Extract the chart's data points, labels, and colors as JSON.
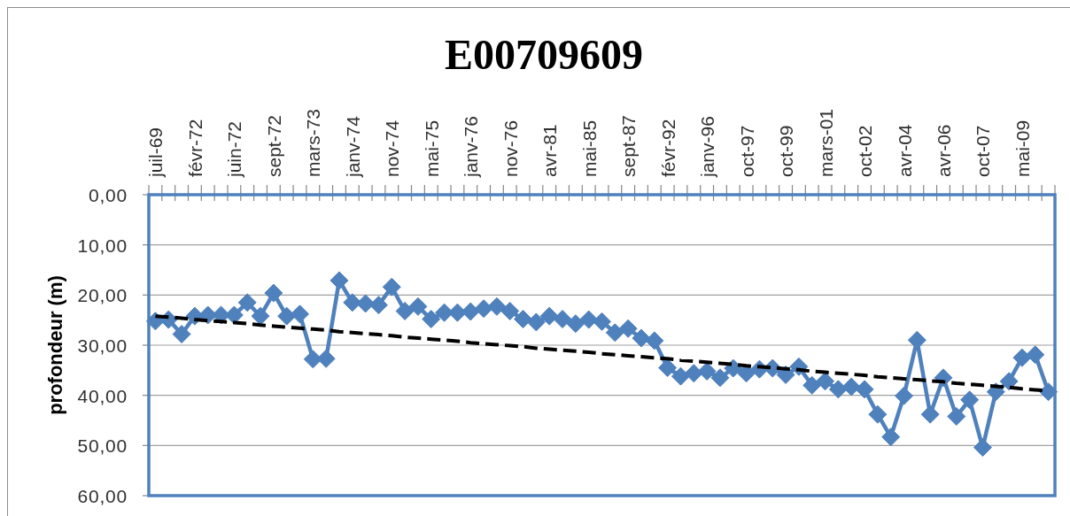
{
  "chart_data": {
    "type": "line",
    "title": "E00709609",
    "ylabel": "profondeur (m)",
    "categories": [
      "juil-69",
      null,
      null,
      "févr-72",
      null,
      null,
      "juin-72",
      null,
      null,
      "sept-72",
      null,
      null,
      "mars-73",
      null,
      null,
      "janv-74",
      null,
      null,
      "nov-74",
      null,
      null,
      "mai-75",
      null,
      null,
      "janv-76",
      null,
      null,
      "nov-76",
      null,
      null,
      "avr-81",
      null,
      null,
      "mai-85",
      null,
      null,
      "sept-87",
      null,
      null,
      "févr-92",
      null,
      null,
      "janv-96",
      null,
      null,
      "oct-97",
      null,
      null,
      "oct-99",
      null,
      null,
      "mars-01",
      null,
      null,
      "oct-02",
      null,
      null,
      "avr-04",
      null,
      null,
      "avr-06",
      null,
      null,
      "oct-07",
      null,
      null,
      "mai-09",
      null,
      null
    ],
    "series": [
      {
        "color": "#4f81bd",
        "marker": "diamond",
        "values": [
          25.2,
          24.9,
          27.8,
          24.2,
          24.0,
          24.0,
          24.0,
          21.5,
          24.2,
          19.6,
          24.2,
          23.8,
          32.8,
          32.7,
          17.1,
          21.5,
          21.7,
          22.0,
          18.4,
          23.2,
          22.3,
          24.8,
          23.5,
          23.5,
          23.3,
          22.7,
          22.3,
          23.2,
          24.8,
          25.4,
          24.2,
          24.8,
          25.7,
          24.9,
          25.3,
          27.5,
          26.7,
          28.6,
          29.1,
          34.5,
          36.2,
          35.6,
          35.2,
          36.5,
          34.6,
          35.6,
          34.8,
          34.6,
          35.9,
          34.3,
          38.0,
          37.2,
          38.8,
          38.3,
          38.8,
          43.8,
          48.3,
          40.1,
          29.0,
          43.8,
          36.5,
          44.2,
          40.9,
          50.4,
          39.3,
          37.2,
          32.5,
          31.9,
          39.3
        ]
      },
      {
        "color": "#000000",
        "marker": "none",
        "line_style": "dashed",
        "values": [
          24.2,
          24.4,
          24.6,
          24.9,
          25.1,
          25.3,
          25.5,
          25.7,
          26.0,
          26.2,
          26.4,
          26.6,
          26.8,
          27.0,
          27.3,
          27.5,
          27.7,
          27.9,
          28.1,
          28.4,
          28.6,
          28.8,
          29.0,
          29.2,
          29.5,
          29.7,
          29.9,
          30.1,
          30.3,
          30.6,
          30.8,
          31.0,
          31.2,
          31.4,
          31.7,
          31.9,
          32.1,
          32.3,
          32.5,
          32.7,
          33.0,
          33.2,
          33.4,
          33.6,
          33.8,
          34.1,
          34.3,
          34.5,
          34.7,
          34.9,
          35.2,
          35.4,
          35.6,
          35.8,
          36.0,
          36.3,
          36.5,
          36.7,
          36.9,
          37.1,
          37.3,
          37.6,
          37.8,
          38.0,
          38.2,
          38.4,
          38.7,
          38.9,
          39.1
        ]
      }
    ],
    "ylim": [
      60,
      0
    ],
    "yticks": [
      {
        "value": 0,
        "label": "0,00"
      },
      {
        "value": 10,
        "label": "10,00"
      },
      {
        "value": 20,
        "label": "20,00"
      },
      {
        "value": 30,
        "label": "30,00"
      },
      {
        "value": 40,
        "label": "40,00"
      },
      {
        "value": 50,
        "label": "50,00"
      },
      {
        "value": 60,
        "label": "60,00"
      }
    ],
    "grid": "y"
  }
}
